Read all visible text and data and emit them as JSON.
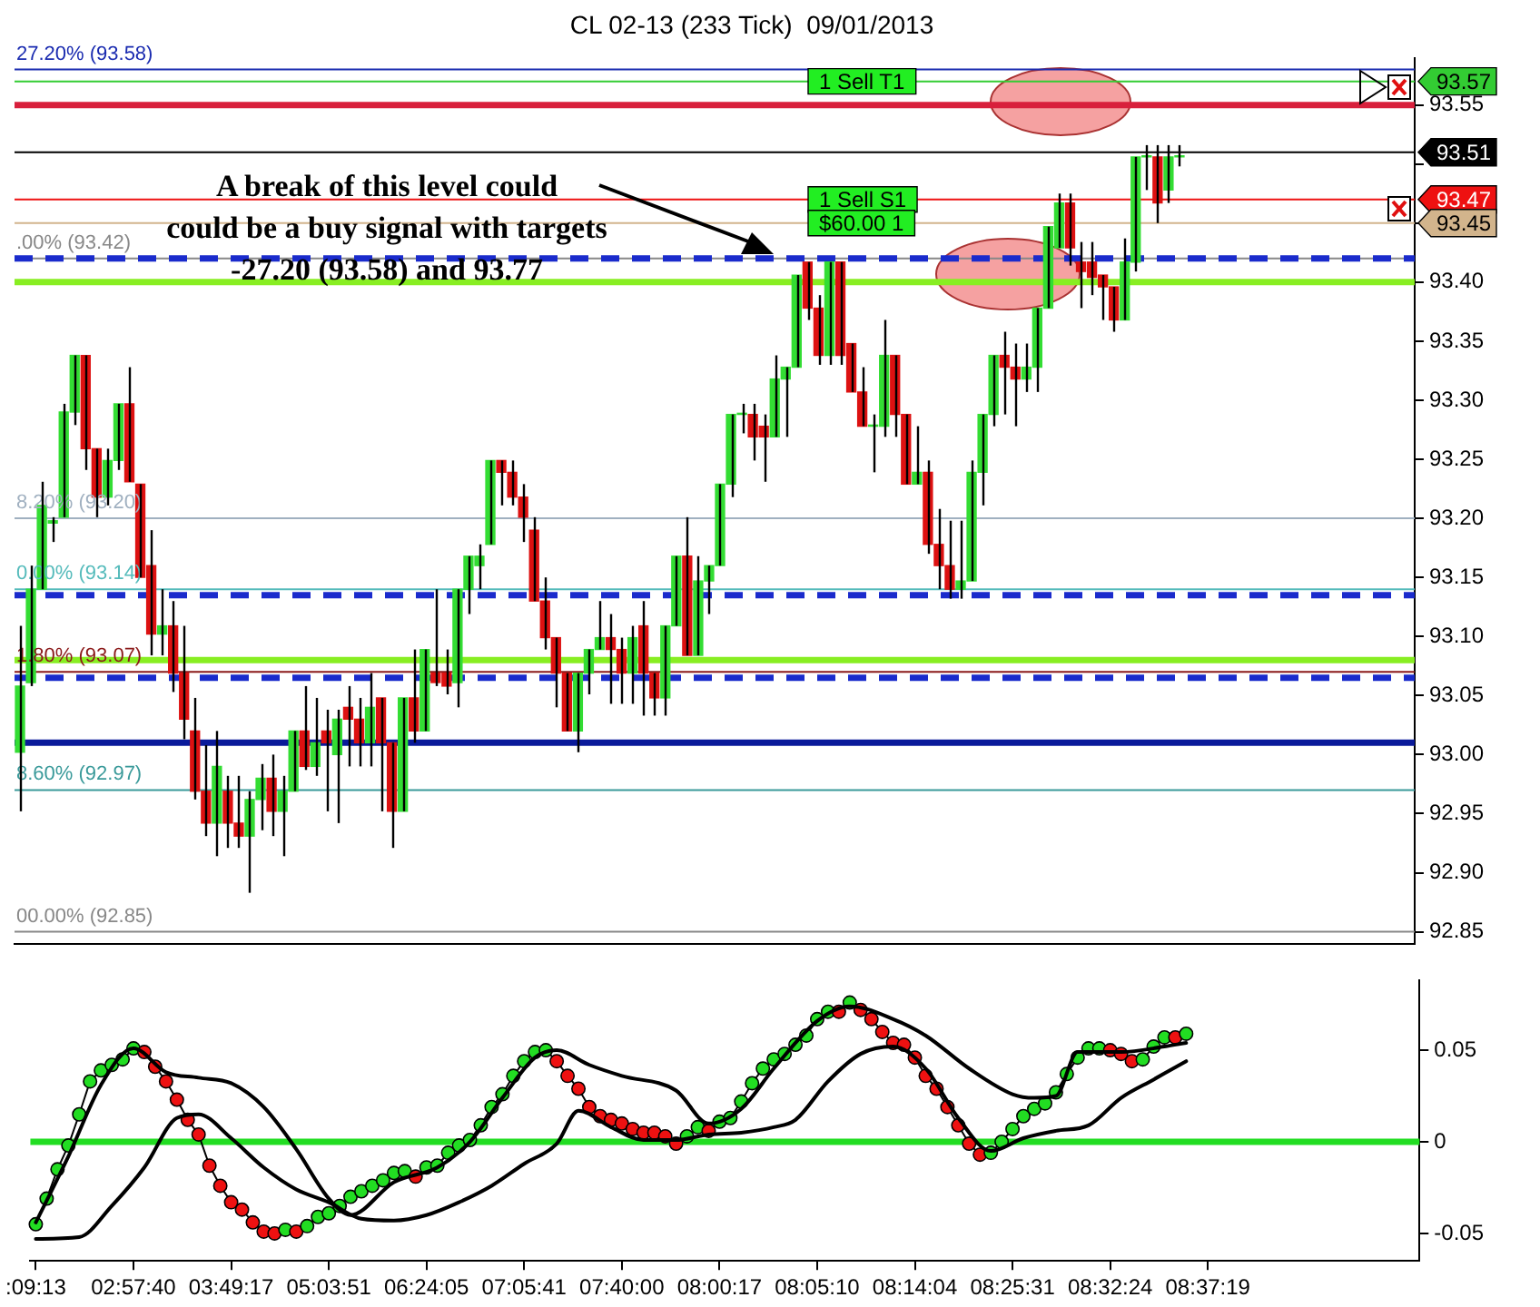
{
  "chart_data": [
    {
      "type": "candlestick",
      "title": "CL 02-13 (233 Tick)  09/01/2013",
      "categories": [
        null,
        null,
        null,
        null,
        null,
        null,
        null,
        null,
        null,
        null,
        null,
        null,
        null,
        null,
        null,
        null,
        null,
        null,
        null,
        null,
        null,
        null,
        null,
        null,
        null,
        null,
        null,
        null,
        null,
        null,
        null,
        null,
        null,
        null,
        null,
        null,
        null,
        null,
        null,
        null,
        null,
        null,
        null,
        null,
        null,
        null,
        null,
        null,
        null,
        null,
        null,
        null,
        null,
        null,
        null,
        null,
        null,
        null,
        null,
        null,
        null,
        null,
        null,
        null,
        null,
        null,
        null,
        null,
        null,
        null,
        null,
        null,
        null,
        null,
        null,
        null,
        null,
        null,
        null,
        null,
        null,
        null,
        null,
        null,
        null,
        null,
        null,
        null,
        null,
        null,
        null,
        null,
        null,
        null,
        null,
        null,
        null,
        null,
        null,
        null,
        null,
        null,
        null,
        null,
        null,
        null,
        null,
        null,
        null,
        null,
        null,
        null,
        null,
        null,
        null,
        null,
        null,
        null,
        null,
        null,
        null,
        null,
        null,
        null,
        null,
        null,
        null,
        null
      ],
      "ohlc": [
        [
          93.002,
          93.109,
          92.952,
          93.058
        ],
        [
          93.061,
          93.16,
          93.058,
          93.14
        ],
        [
          93.14,
          93.231,
          93.14,
          93.211
        ],
        [
          93.196,
          93.201,
          93.18,
          93.198
        ],
        [
          93.201,
          93.297,
          93.201,
          93.29
        ],
        [
          93.29,
          93.338,
          93.279,
          93.338
        ],
        [
          93.338,
          93.338,
          93.241,
          93.259
        ],
        [
          93.259,
          93.259,
          93.201,
          93.218
        ],
        [
          93.218,
          93.259,
          93.211,
          93.249
        ],
        [
          93.249,
          93.297,
          93.241,
          93.297
        ],
        [
          93.297,
          93.328,
          93.231,
          93.231
        ],
        [
          93.229,
          93.229,
          93.15,
          93.15
        ],
        [
          93.16,
          93.19,
          93.084,
          93.102
        ],
        [
          93.102,
          93.14,
          93.084,
          93.109
        ],
        [
          93.109,
          93.13,
          93.053,
          93.069
        ],
        [
          93.069,
          93.109,
          93.013,
          93.03
        ],
        [
          93.02,
          93.048,
          92.962,
          92.969
        ],
        [
          92.969,
          93.008,
          92.931,
          92.942
        ],
        [
          92.942,
          93.02,
          92.914,
          92.99
        ],
        [
          92.969,
          92.982,
          92.921,
          92.942
        ],
        [
          92.942,
          92.982,
          92.921,
          92.931
        ],
        [
          92.931,
          92.969,
          92.883,
          92.962
        ],
        [
          92.962,
          92.992,
          92.936,
          92.98
        ],
        [
          92.98,
          93.0,
          92.931,
          92.952
        ],
        [
          92.952,
          92.982,
          92.914,
          92.969
        ],
        [
          92.969,
          93.02,
          92.969,
          93.02
        ],
        [
          93.02,
          93.058,
          92.987,
          92.99
        ],
        [
          92.99,
          93.048,
          92.982,
          93.01
        ],
        [
          93.02,
          93.038,
          92.952,
          93.01
        ],
        [
          93.0,
          93.038,
          92.942,
          93.03
        ],
        [
          93.04,
          93.058,
          92.99,
          93.03
        ],
        [
          93.03,
          93.048,
          92.99,
          93.01
        ],
        [
          93.01,
          93.069,
          92.99,
          93.04
        ],
        [
          93.048,
          93.048,
          92.952,
          93.01
        ],
        [
          93.01,
          93.01,
          92.921,
          92.952
        ],
        [
          92.952,
          93.048,
          92.952,
          93.048
        ],
        [
          93.048,
          93.089,
          93.01,
          93.02
        ],
        [
          93.02,
          93.089,
          93.02,
          93.089
        ],
        [
          93.069,
          93.14,
          93.058,
          93.061
        ],
        [
          93.069,
          93.089,
          93.051,
          93.058
        ],
        [
          93.061,
          93.14,
          93.04,
          93.14
        ],
        [
          93.14,
          93.168,
          93.119,
          93.168
        ],
        [
          93.16,
          93.178,
          93.14,
          93.168
        ],
        [
          93.178,
          93.249,
          93.178,
          93.249
        ],
        [
          93.249,
          93.249,
          93.211,
          93.239
        ],
        [
          93.239,
          93.249,
          93.211,
          93.218
        ],
        [
          93.218,
          93.229,
          93.18,
          93.201
        ],
        [
          93.19,
          93.201,
          93.13,
          93.13
        ],
        [
          93.13,
          93.15,
          93.089,
          93.099
        ],
        [
          93.099,
          93.099,
          93.04,
          93.069
        ],
        [
          93.069,
          93.069,
          93.02,
          93.02
        ],
        [
          93.02,
          93.069,
          93.002,
          93.069
        ],
        [
          93.069,
          93.089,
          93.051,
          93.089
        ],
        [
          93.089,
          93.13,
          93.089,
          93.099
        ],
        [
          93.099,
          93.119,
          93.043,
          93.089
        ],
        [
          93.089,
          93.099,
          93.043,
          93.069
        ],
        [
          93.069,
          93.109,
          93.043,
          93.099
        ],
        [
          93.109,
          93.13,
          93.033,
          93.069
        ],
        [
          93.069,
          93.069,
          93.033,
          93.048
        ],
        [
          93.048,
          93.109,
          93.033,
          93.109
        ],
        [
          93.109,
          93.168,
          93.109,
          93.168
        ],
        [
          93.168,
          93.201,
          93.084,
          93.084
        ],
        [
          93.084,
          93.168,
          93.084,
          93.147
        ],
        [
          93.147,
          93.16,
          93.119,
          93.16
        ],
        [
          93.16,
          93.229,
          93.16,
          93.229
        ],
        [
          93.229,
          93.288,
          93.218,
          93.288
        ],
        [
          93.288,
          93.297,
          93.272,
          93.289
        ],
        [
          93.288,
          93.297,
          93.249,
          93.269
        ],
        [
          93.278,
          93.288,
          93.231,
          93.269
        ],
        [
          93.269,
          93.338,
          93.269,
          93.318
        ],
        [
          93.318,
          93.328,
          93.269,
          93.328
        ],
        [
          93.328,
          93.406,
          93.328,
          93.406
        ],
        [
          93.417,
          93.417,
          93.368,
          93.378
        ],
        [
          93.378,
          93.389,
          93.33,
          93.338
        ],
        [
          93.338,
          93.417,
          93.33,
          93.417
        ],
        [
          93.417,
          93.417,
          93.33,
          93.338
        ],
        [
          93.348,
          93.348,
          93.307,
          93.307
        ],
        [
          93.307,
          93.328,
          93.278,
          93.278
        ],
        [
          93.278,
          93.288,
          93.239,
          93.279
        ],
        [
          93.278,
          93.368,
          93.269,
          93.338
        ],
        [
          93.338,
          93.338,
          93.269,
          93.288
        ],
        [
          93.288,
          93.288,
          93.229,
          93.229
        ],
        [
          93.229,
          93.278,
          93.229,
          93.239
        ],
        [
          93.239,
          93.249,
          93.17,
          93.178
        ],
        [
          93.178,
          93.208,
          93.14,
          93.16
        ],
        [
          93.16,
          93.198,
          93.132,
          93.14
        ],
        [
          93.14,
          93.198,
          93.132,
          93.147
        ],
        [
          93.147,
          93.249,
          93.147,
          93.239
        ],
        [
          93.239,
          93.288,
          93.211,
          93.288
        ],
        [
          93.288,
          93.338,
          93.278,
          93.338
        ],
        [
          93.338,
          93.358,
          93.288,
          93.328
        ],
        [
          93.328,
          93.348,
          93.278,
          93.318
        ],
        [
          93.318,
          93.348,
          93.307,
          93.328
        ],
        [
          93.328,
          93.378,
          93.307,
          93.378
        ],
        [
          93.378,
          93.447,
          93.378,
          93.447
        ],
        [
          93.429,
          93.475,
          93.429,
          93.467
        ],
        [
          93.467,
          93.475,
          93.414,
          93.429
        ],
        [
          93.417,
          93.434,
          93.378,
          93.409
        ],
        [
          93.417,
          93.434,
          93.389,
          93.404
        ],
        [
          93.406,
          93.406,
          93.368,
          93.396
        ],
        [
          93.396,
          93.396,
          93.358,
          93.368
        ],
        [
          93.368,
          93.437,
          93.368,
          93.417
        ],
        [
          93.417,
          93.506,
          93.409,
          93.506
        ],
        [
          93.506,
          93.516,
          93.478,
          93.507
        ],
        [
          93.506,
          93.516,
          93.45,
          93.467
        ],
        [
          93.478,
          93.516,
          93.467,
          93.506
        ],
        [
          93.506,
          93.516,
          93.498,
          93.507
        ],
        null,
        null,
        null,
        null,
        null,
        null,
        null,
        null,
        null,
        null,
        null,
        null,
        null,
        null,
        null,
        null,
        null,
        null,
        null,
        null,
        null
      ],
      "ylim": [
        92.84,
        93.59
      ],
      "yticks": [
        92.85,
        {
          "value": 92.9,
          "label": "92.90"
        },
        92.95,
        {
          "value": 93.0,
          "label": "93.00"
        },
        93.05,
        {
          "value": 93.1,
          "label": "93.10"
        },
        93.15,
        {
          "value": 93.2,
          "label": "93.20"
        },
        93.25,
        {
          "value": 93.3,
          "label": "93.30"
        },
        93.35,
        {
          "value": 93.4,
          "label": "93.40"
        },
        {
          "value": 93.45,
          "label": null
        },
        {
          "value": 93.5,
          "label": null
        },
        93.55
      ],
      "tick_labels": "y",
      "ref_lines": [
        {
          "axis": "y",
          "value": 93.58,
          "label": "27.20% (93.58)",
          "color": "#1a2bb0"
        },
        {
          "axis": "y",
          "value": 93.57,
          "label": "93.57",
          "color": "#33cc33"
        },
        {
          "axis": "y",
          "value": 93.55,
          "color": "#d8203c"
        },
        {
          "axis": "y",
          "value": 93.51,
          "label": "93.51",
          "color": "#000000"
        },
        {
          "axis": "y",
          "value": 93.47,
          "label": "93.47",
          "color": "#ee1111"
        },
        {
          "axis": "y",
          "value": 93.45,
          "label": "93.45",
          "color": "#d2b48c"
        },
        {
          "axis": "y",
          "value": 93.42,
          "label": ".00% (93.42)",
          "color": "#888888"
        },
        {
          "axis": "y",
          "value": 93.42,
          "color": "#1a2bcc",
          "line_style": "dashed"
        },
        {
          "axis": "y",
          "value": 93.4,
          "color": "#88ee22"
        },
        {
          "axis": "y",
          "value": 93.2,
          "label": "8.20% (93.20)",
          "color": "#a0b0c0"
        },
        {
          "axis": "y",
          "value": 93.14,
          "label": "0.00% (93.14)",
          "color": "#55bbbb"
        },
        {
          "axis": "y",
          "value": 93.135,
          "color": "#1a2bcc",
          "line_style": "dashed"
        },
        {
          "axis": "y",
          "value": 93.08,
          "color": "#88ee22"
        },
        {
          "axis": "y",
          "value": 93.07,
          "label": "1.80% (93.07)",
          "color": "#8b1a1a"
        },
        {
          "axis": "y",
          "value": 93.065,
          "color": "#1a2bcc",
          "line_style": "dashed"
        },
        {
          "axis": "y",
          "value": 93.01,
          "color": "#0a1a9a"
        },
        {
          "axis": "y",
          "value": 92.97,
          "label": "8.60% (92.97)",
          "color": "#3a9a9a"
        },
        {
          "axis": "y",
          "value": 92.85,
          "label": "00.00% (92.85)",
          "color": "#888888"
        }
      ],
      "annotations": [
        "A break of this level could\ncould be a buy signal with targets\n-27.20 (93.58) and 93.77",
        {
          "text": "1 Sell T1",
          "y": 93.57
        },
        {
          "text": "1 Sell S1",
          "y": 93.47
        },
        {
          "text": "$60.00 1",
          "y": 93.45
        }
      ]
    },
    {
      "type": "line",
      "categories": [
        ":09:13",
        null,
        null,
        null,
        null,
        null,
        null,
        null,
        null,
        "02:57:40",
        null,
        null,
        null,
        null,
        null,
        null,
        null,
        null,
        "03:49:17",
        null,
        null,
        null,
        null,
        null,
        null,
        null,
        null,
        "05:03:51",
        null,
        null,
        null,
        null,
        null,
        null,
        null,
        null,
        "06:24:05",
        null,
        null,
        null,
        null,
        null,
        null,
        null,
        null,
        "07:05:41",
        null,
        null,
        null,
        null,
        null,
        null,
        null,
        null,
        "07:40:00",
        null,
        null,
        null,
        null,
        null,
        null,
        null,
        null,
        "08:00:17",
        null,
        null,
        null,
        null,
        null,
        null,
        null,
        null,
        "08:05:10",
        null,
        null,
        null,
        null,
        null,
        null,
        null,
        null,
        "08:14:04",
        null,
        null,
        null,
        null,
        null,
        null,
        null,
        null,
        "08:25:31",
        null,
        null,
        null,
        null,
        null,
        null,
        null,
        null,
        "08:32:24",
        null,
        null,
        null,
        null,
        null,
        null,
        null,
        null,
        "08:37:19",
        null,
        null,
        null,
        null,
        null,
        null,
        null,
        null,
        null,
        null,
        null,
        null,
        null,
        null,
        null,
        null,
        null,
        null,
        null
      ],
      "ylim": [
        -0.065,
        0.088
      ],
      "yticks": [
        -0.05,
        0,
        0.05
      ],
      "ref_lines": [
        {
          "axis": "y",
          "value": 0,
          "color": "#22dd22"
        }
      ],
      "series": [
        {
          "color": "#000000",
          "values": [
            -0.044,
            null,
            null,
            -0.008,
            null,
            null,
            0.031,
            null,
            null,
            0.051,
            null,
            null,
            0.038,
            null,
            null,
            0.035,
            null,
            null,
            0.032,
            null,
            null,
            0.019,
            null,
            null,
            -0.004,
            null,
            null,
            -0.031,
            null,
            -0.04,
            null,
            null,
            null,
            -0.022,
            null,
            null,
            null,
            -0.014,
            null,
            null,
            0.0,
            null,
            null,
            0.024,
            null,
            null,
            0.046,
            null,
            0.05,
            null,
            null,
            0.042,
            null,
            null,
            0.036,
            null,
            null,
            null,
            null,
            0.028,
            null,
            null,
            0.01,
            null,
            null,
            0.018,
            null,
            null,
            0.04,
            null,
            null,
            null,
            0.066,
            null,
            null,
            0.074,
            null,
            null,
            null,
            0.067,
            null,
            null,
            0.058,
            null,
            null,
            null,
            0.04,
            null,
            null,
            null,
            0.026,
            null,
            0.024,
            null,
            0.025,
            null,
            0.049,
            null,
            null,
            null,
            0.049,
            null,
            null,
            null,
            0.052,
            null,
            0.054,
            null,
            null,
            null,
            null,
            null,
            null,
            null,
            null,
            null,
            null,
            null,
            null,
            null,
            null,
            null,
            null,
            null,
            null,
            null,
            null,
            null
          ]
        },
        {
          "color": "#000000",
          "values": [
            -0.053,
            null,
            null,
            null,
            -0.052,
            null,
            null,
            -0.035,
            null,
            null,
            -0.014,
            null,
            null,
            0.013,
            null,
            0.015,
            null,
            null,
            0.002,
            null,
            null,
            -0.014,
            null,
            null,
            -0.026,
            null,
            null,
            -0.033,
            null,
            null,
            -0.042,
            null,
            null,
            -0.043,
            null,
            null,
            -0.04,
            null,
            null,
            -0.033,
            null,
            null,
            -0.024,
            null,
            null,
            -0.012,
            null,
            null,
            -0.001,
            null,
            0.017,
            null,
            null,
            0.008,
            null,
            null,
            0.001,
            null,
            null,
            0.001,
            null,
            null,
            0.004,
            null,
            null,
            0.005,
            null,
            null,
            0.008,
            null,
            0.012,
            null,
            null,
            0.033,
            null,
            null,
            0.048,
            null,
            null,
            0.052,
            null,
            null,
            0.04,
            null,
            null,
            0.013,
            null,
            null,
            -0.005,
            null,
            null,
            0.002,
            null,
            null,
            0.006,
            null,
            null,
            0.009,
            null,
            null,
            0.024,
            null,
            null,
            0.034,
            null,
            null,
            0.044,
            null,
            null,
            null,
            null,
            null,
            null,
            null,
            null,
            null,
            null,
            null,
            null,
            null,
            null,
            null,
            null,
            null,
            null,
            null,
            null,
            null
          ]
        },
        {
          "color": "#000000",
          "marker": "circle",
          "colors": [
            "#22dd22",
            "#22dd22",
            "#22dd22",
            "#22dd22",
            "#22dd22",
            "#22dd22",
            "#22dd22",
            "#22dd22",
            "#22dd22",
            "#22dd22",
            "#ee1111",
            "#ee1111",
            "#ee1111",
            "#ee1111",
            "#ee1111",
            "#ee1111",
            "#ee1111",
            "#ee1111",
            "#ee1111",
            "#ee1111",
            "#ee1111",
            "#ee1111",
            "#ee1111",
            "#22dd22",
            "#ee1111",
            "#22dd22",
            "#22dd22",
            "#22dd22",
            "#22dd22",
            "#22dd22",
            "#22dd22",
            "#22dd22",
            "#22dd22",
            "#22dd22",
            "#22dd22",
            "#ee1111",
            "#22dd22",
            "#22dd22",
            "#22dd22",
            "#22dd22",
            "#22dd22",
            "#22dd22",
            "#22dd22",
            "#22dd22",
            "#22dd22",
            "#22dd22",
            "#22dd22",
            "#22dd22",
            "#ee1111",
            "#ee1111",
            "#ee1111",
            "#ee1111",
            "#ee1111",
            "#ee1111",
            "#ee1111",
            "#ee1111",
            "#ee1111",
            "#ee1111",
            "#ee1111",
            "#ee1111",
            "#22dd22",
            "#22dd22",
            "#ee1111",
            "#22dd22",
            "#22dd22",
            "#22dd22",
            "#22dd22",
            "#22dd22",
            "#22dd22",
            "#22dd22",
            "#22dd22",
            "#22dd22",
            "#22dd22",
            "#22dd22",
            "#ee1111",
            "#22dd22",
            "#ee1111",
            "#ee1111",
            "#ee1111",
            "#ee1111",
            "#ee1111",
            "#ee1111",
            "#ee1111",
            "#ee1111",
            "#ee1111",
            "#ee1111",
            "#ee1111",
            "#ee1111",
            "#22dd22",
            "#22dd22",
            "#22dd22",
            "#22dd22",
            "#22dd22",
            "#22dd22",
            "#22dd22",
            "#22dd22",
            "#22dd22",
            "#22dd22",
            "#22dd22",
            "#ee1111",
            "#ee1111",
            "#ee1111",
            "#22dd22",
            "#22dd22",
            "#22dd22",
            "#ee1111",
            "#22dd22",
            null,
            null,
            null,
            null,
            null,
            null,
            null,
            null,
            null,
            null,
            null,
            null,
            null,
            null,
            null,
            null,
            null,
            null,
            null,
            null,
            null
          ],
          "values": [
            -0.045,
            -0.031,
            -0.015,
            -0.002,
            0.015,
            0.033,
            0.039,
            0.042,
            0.045,
            0.051,
            0.049,
            0.041,
            0.033,
            0.023,
            0.012,
            0.004,
            -0.013,
            -0.024,
            -0.033,
            -0.037,
            -0.044,
            -0.049,
            -0.05,
            -0.048,
            -0.049,
            -0.046,
            -0.041,
            -0.039,
            -0.035,
            -0.03,
            -0.027,
            -0.024,
            -0.021,
            -0.017,
            -0.016,
            -0.019,
            -0.014,
            -0.013,
            -0.006,
            -0.002,
            0.001,
            0.009,
            0.019,
            0.026,
            0.036,
            0.044,
            0.049,
            0.05,
            0.044,
            0.036,
            0.029,
            0.019,
            0.014,
            0.012,
            0.01,
            0.007,
            0.005,
            0.005,
            0.003,
            -0.001,
            0.003,
            0.008,
            0.006,
            0.011,
            0.013,
            0.022,
            0.032,
            0.04,
            0.045,
            0.048,
            0.053,
            0.058,
            0.067,
            0.071,
            0.071,
            0.076,
            0.072,
            0.067,
            0.06,
            0.054,
            0.053,
            0.046,
            0.036,
            0.029,
            0.019,
            0.009,
            -0.001,
            -0.007,
            -0.006,
            0.0,
            0.007,
            0.014,
            0.018,
            0.021,
            0.027,
            0.037,
            0.046,
            0.051,
            0.051,
            0.05,
            0.048,
            0.044,
            0.045,
            0.052,
            0.057,
            0.057,
            0.059,
            null,
            null,
            null,
            null,
            null,
            null,
            null,
            null,
            null,
            null,
            null,
            null,
            null,
            null,
            null,
            null,
            null,
            null,
            null,
            null,
            null
          ]
        }
      ]
    }
  ]
}
